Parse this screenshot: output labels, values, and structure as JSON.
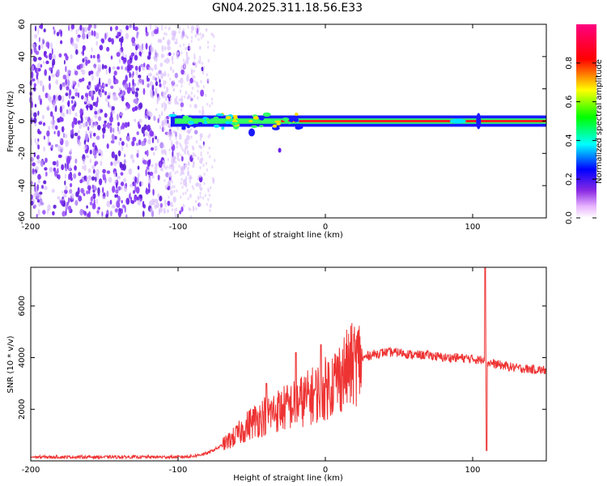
{
  "title": "GN04.2025.311.18.56.E33",
  "chart_data": [
    {
      "type": "heatmap",
      "xlabel": "Height of straight line (km)",
      "ylabel": "Frequency (Hz)",
      "xlim": [
        -200,
        150
      ],
      "ylim": [
        -60,
        60
      ],
      "xticks": [
        "-200",
        "-100",
        "0",
        "100"
      ],
      "yticks": [
        "-60",
        "-40",
        "-20",
        "0",
        "20",
        "40",
        "60"
      ],
      "colorbar": {
        "label": "Normalized spectral amplitude",
        "ticks": [
          "0.0",
          "0.2",
          "0.4",
          "0.6",
          "0.8"
        ],
        "range": [
          0,
          1
        ]
      },
      "noise_region_x": [
        -200,
        -75
      ],
      "signal_line": {
        "x_start": -105,
        "x_end": 150,
        "frequency": 0,
        "half_width_hz": 3
      }
    },
    {
      "type": "line",
      "xlabel": "Height of straight line (km)",
      "ylabel": "SNR (10 * v/v)",
      "xlim": [
        -200,
        150
      ],
      "ylim": [
        0,
        7500
      ],
      "xticks": [
        "-200",
        "-100",
        "0",
        "100"
      ],
      "yticks": [
        "2000",
        "4000",
        "6000"
      ],
      "color": "#ee3333",
      "x": [
        -200,
        -150,
        -100,
        -90,
        -80,
        -70,
        -60,
        -50,
        -40,
        -30,
        -20,
        -10,
        0,
        10,
        20,
        30,
        40,
        50,
        60,
        70,
        80,
        90,
        100,
        105,
        108,
        110,
        112,
        115,
        120,
        130,
        140,
        150
      ],
      "y": [
        150,
        150,
        150,
        180,
        300,
        600,
        1000,
        1500,
        1800,
        2000,
        2200,
        2500,
        2800,
        3300,
        3800,
        4100,
        4200,
        4200,
        4100,
        4100,
        4000,
        4000,
        3950,
        3900,
        4000,
        3800,
        3800,
        3750,
        3700,
        3600,
        3550,
        3500
      ],
      "spikes": [
        {
          "x": 108.5,
          "y": 7500
        },
        {
          "x": 109.5,
          "y": 400
        },
        {
          "x": -3,
          "y": 4500
        },
        {
          "x": -20,
          "y": 4200
        },
        {
          "x": -40,
          "y": 3000
        }
      ]
    }
  ]
}
